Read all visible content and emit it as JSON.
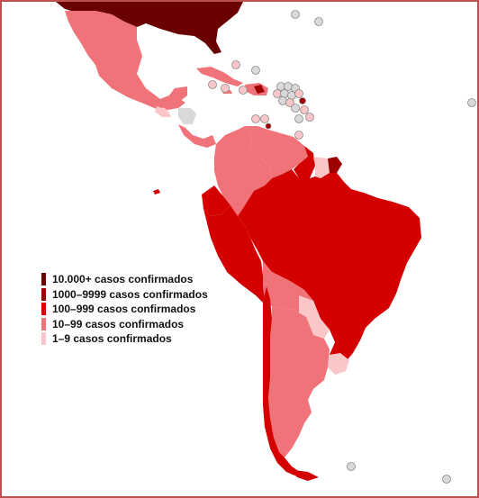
{
  "colors": {
    "level_10000_plus": "#6b0000",
    "level_1000_9999": "#9e0000",
    "level_100_999": "#d40000",
    "level_10_99": "#ef7378",
    "level_1_9": "#fbc6c7",
    "no_data": "#d9d9d9",
    "border": "#c0504d"
  },
  "legend": {
    "items": [
      {
        "label": "10.000+ casos confirmados",
        "color": "#6b0000"
      },
      {
        "label": "1000–9999 casos confirmados",
        "color": "#9e0000"
      },
      {
        "label": "100–999 casos confirmados",
        "color": "#d40000"
      },
      {
        "label": "10–99 casos confirmados",
        "color": "#ef7378"
      },
      {
        "label": "1–9 casos confirmados",
        "color": "#fbc6c7"
      }
    ]
  }
}
